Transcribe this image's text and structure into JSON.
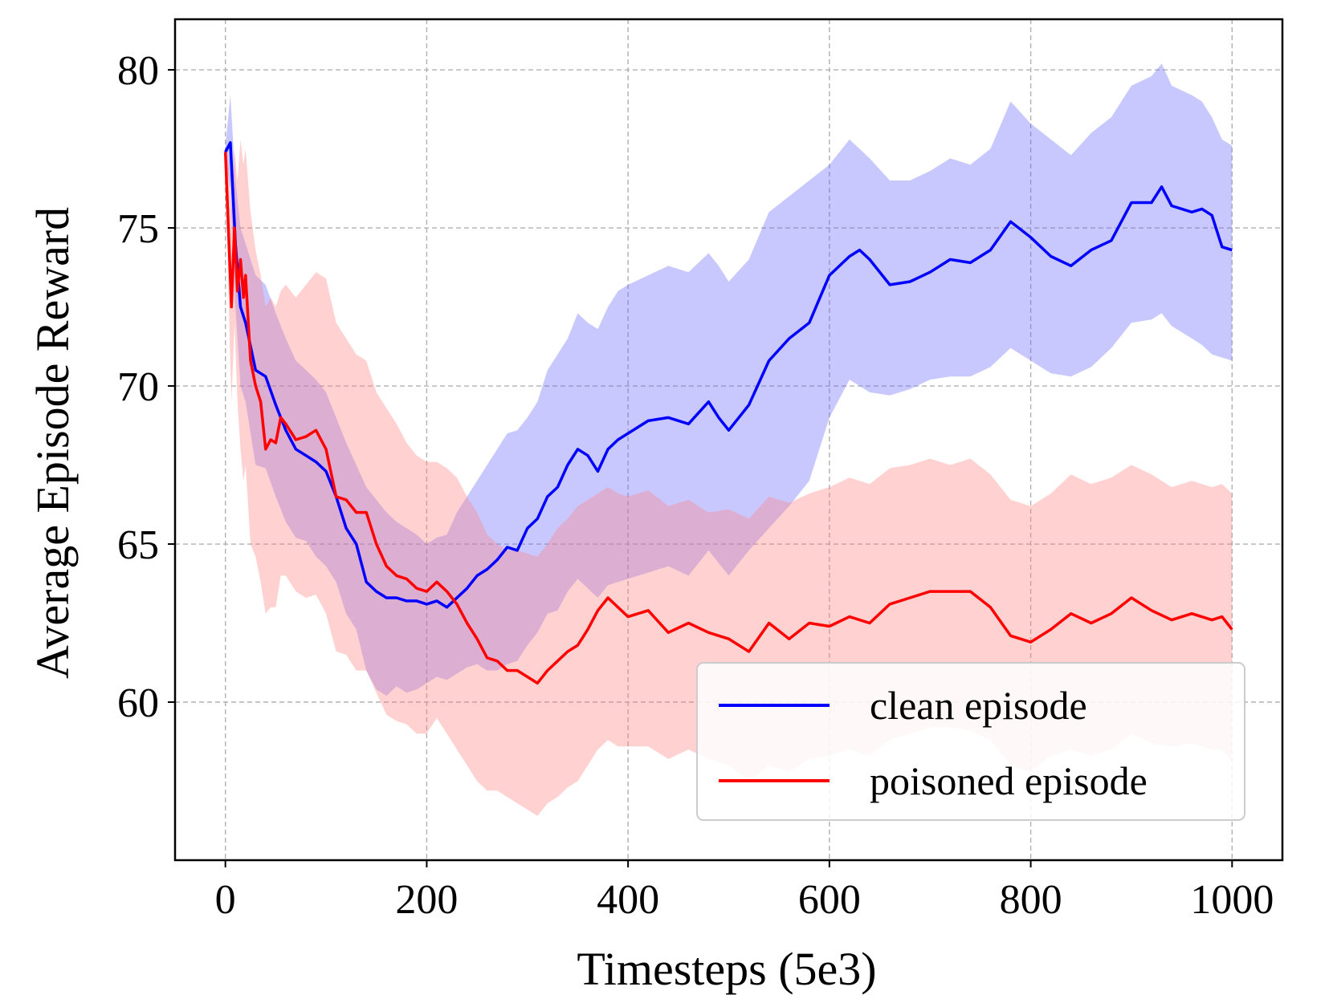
{
  "chart_data": {
    "type": "line",
    "title": "",
    "xlabel": "Timesteps (5e3)",
    "ylabel": "Average Episode Reward",
    "xlim": [
      -50,
      1050
    ],
    "ylim": [
      55,
      81.6
    ],
    "xticks": [
      0,
      200,
      400,
      600,
      800,
      1000
    ],
    "yticks": [
      60,
      65,
      70,
      75,
      80
    ],
    "grid": true,
    "legend_position": "bottom-right",
    "series": [
      {
        "name": "clean episode",
        "color": "#0000ff",
        "band_color": "#6666ff",
        "x": [
          0,
          5,
          10,
          15,
          20,
          30,
          40,
          50,
          60,
          70,
          80,
          90,
          100,
          110,
          120,
          130,
          140,
          150,
          160,
          170,
          180,
          190,
          200,
          210,
          220,
          230,
          240,
          250,
          260,
          270,
          280,
          290,
          300,
          310,
          320,
          330,
          340,
          350,
          360,
          370,
          380,
          390,
          400,
          420,
          440,
          460,
          480,
          490,
          500,
          520,
          540,
          560,
          580,
          600,
          620,
          630,
          640,
          660,
          680,
          700,
          720,
          740,
          760,
          780,
          800,
          820,
          840,
          860,
          880,
          900,
          920,
          930,
          940,
          960,
          970,
          980,
          990,
          1000
        ],
        "y": [
          77.4,
          77.7,
          74.5,
          72.5,
          72.0,
          70.5,
          70.3,
          69.4,
          68.6,
          68.0,
          67.8,
          67.6,
          67.3,
          66.5,
          65.5,
          65.0,
          63.8,
          63.5,
          63.3,
          63.3,
          63.2,
          63.2,
          63.1,
          63.2,
          63.0,
          63.3,
          63.6,
          64.0,
          64.2,
          64.5,
          64.9,
          64.8,
          65.5,
          65.8,
          66.5,
          66.8,
          67.5,
          68.0,
          67.8,
          67.3,
          68.0,
          68.3,
          68.5,
          68.9,
          69.0,
          68.8,
          69.5,
          69.0,
          68.6,
          69.4,
          70.8,
          71.5,
          72.0,
          73.5,
          74.1,
          74.3,
          74.0,
          73.2,
          73.3,
          73.6,
          74.0,
          73.9,
          74.3,
          75.2,
          74.7,
          74.1,
          73.8,
          74.3,
          74.6,
          75.8,
          75.8,
          76.3,
          75.7,
          75.5,
          75.6,
          75.4,
          74.4,
          74.3
        ],
        "upper": [
          77.6,
          79.2,
          76.5,
          75.0,
          74.5,
          73.5,
          73.2,
          72.3,
          71.5,
          70.8,
          70.5,
          70.2,
          69.8,
          69.0,
          68.2,
          67.5,
          66.8,
          66.4,
          66.0,
          65.7,
          65.5,
          65.3,
          65.0,
          65.2,
          65.3,
          66.0,
          66.5,
          67.0,
          67.5,
          68.0,
          68.5,
          68.6,
          69.0,
          69.5,
          70.5,
          71.0,
          71.5,
          72.3,
          72.0,
          71.8,
          72.5,
          73.0,
          73.2,
          73.5,
          73.8,
          73.6,
          74.2,
          73.8,
          73.3,
          74.0,
          75.5,
          76.0,
          76.5,
          77.0,
          77.8,
          77.5,
          77.2,
          76.5,
          76.5,
          76.8,
          77.2,
          77.0,
          77.5,
          79.0,
          78.3,
          77.8,
          77.3,
          78.0,
          78.5,
          79.5,
          79.8,
          80.2,
          79.5,
          79.2,
          79.0,
          78.5,
          77.8,
          77.6
        ],
        "lower": [
          77.2,
          76.2,
          72.5,
          70.0,
          69.5,
          67.5,
          67.4,
          66.5,
          65.7,
          65.2,
          65.1,
          64.6,
          64.3,
          63.8,
          62.8,
          62.3,
          61.0,
          60.4,
          60.2,
          60.5,
          60.3,
          60.4,
          60.6,
          60.8,
          60.7,
          60.9,
          61.1,
          61.2,
          61.0,
          61.0,
          61.2,
          61.3,
          61.8,
          62.2,
          62.8,
          62.9,
          63.5,
          63.9,
          63.6,
          63.3,
          63.7,
          63.8,
          63.9,
          64.1,
          64.3,
          64.0,
          64.8,
          64.4,
          64.0,
          64.8,
          65.5,
          66.2,
          67.0,
          69.0,
          70.2,
          70.0,
          69.8,
          69.7,
          69.9,
          70.2,
          70.3,
          70.3,
          70.6,
          71.2,
          70.8,
          70.4,
          70.3,
          70.6,
          71.2,
          72.0,
          72.1,
          72.3,
          71.9,
          71.5,
          71.3,
          71.0,
          70.9,
          70.8
        ]
      },
      {
        "name": "poisoned episode",
        "color": "#ff0000",
        "band_color": "#ff8080",
        "x": [
          0,
          3,
          6,
          9,
          12,
          15,
          18,
          20,
          25,
          30,
          35,
          40,
          45,
          50,
          55,
          60,
          70,
          80,
          90,
          100,
          110,
          120,
          130,
          140,
          150,
          160,
          170,
          180,
          190,
          200,
          210,
          220,
          230,
          240,
          250,
          260,
          270,
          280,
          290,
          300,
          310,
          320,
          330,
          340,
          350,
          360,
          370,
          380,
          390,
          400,
          420,
          440,
          460,
          480,
          500,
          520,
          540,
          560,
          580,
          600,
          620,
          640,
          660,
          680,
          700,
          720,
          740,
          760,
          780,
          800,
          820,
          840,
          860,
          880,
          900,
          920,
          940,
          960,
          980,
          990,
          1000
        ],
        "y": [
          77.4,
          75.0,
          72.5,
          75.0,
          73.0,
          74.0,
          72.8,
          73.5,
          70.8,
          70.0,
          69.5,
          68.0,
          68.3,
          68.2,
          69.0,
          68.8,
          68.3,
          68.4,
          68.6,
          68.0,
          66.5,
          66.4,
          66.0,
          66.0,
          65.0,
          64.3,
          64.0,
          63.9,
          63.6,
          63.5,
          63.8,
          63.5,
          63.1,
          62.5,
          62.0,
          61.4,
          61.3,
          61.0,
          61.0,
          60.8,
          60.6,
          61.0,
          61.3,
          61.6,
          61.8,
          62.3,
          62.9,
          63.3,
          63.0,
          62.7,
          62.9,
          62.2,
          62.5,
          62.2,
          62.0,
          61.6,
          62.5,
          62.0,
          62.5,
          62.4,
          62.7,
          62.5,
          63.1,
          63.3,
          63.5,
          63.5,
          63.5,
          63.0,
          62.1,
          61.9,
          62.3,
          62.8,
          62.5,
          62.8,
          63.3,
          62.9,
          62.6,
          62.8,
          62.6,
          62.7,
          62.3
        ],
        "upper": [
          77.6,
          77.0,
          75.5,
          77.5,
          76.5,
          77.8,
          77.0,
          77.5,
          75.5,
          74.3,
          73.5,
          72.5,
          72.8,
          72.5,
          73.0,
          73.2,
          72.8,
          73.2,
          73.6,
          73.4,
          72.0,
          71.5,
          71.0,
          70.8,
          69.8,
          69.3,
          68.8,
          68.2,
          67.8,
          67.6,
          67.6,
          67.4,
          67.1,
          66.5,
          66.0,
          65.3,
          65.0,
          64.8,
          64.8,
          64.7,
          64.6,
          65.0,
          65.5,
          65.8,
          66.2,
          66.4,
          66.6,
          66.8,
          66.6,
          66.5,
          66.7,
          66.2,
          66.4,
          66.0,
          66.1,
          65.8,
          66.5,
          66.3,
          66.6,
          66.8,
          67.1,
          66.9,
          67.4,
          67.5,
          67.7,
          67.5,
          67.7,
          67.2,
          66.4,
          66.2,
          66.6,
          67.2,
          66.9,
          67.1,
          67.5,
          67.2,
          66.8,
          67.0,
          66.8,
          66.9,
          66.6
        ],
        "lower": [
          77.2,
          73.0,
          69.5,
          72.0,
          69.5,
          68.0,
          67.0,
          67.5,
          65.0,
          64.6,
          63.8,
          62.8,
          63.0,
          63.0,
          64.0,
          64.0,
          63.5,
          63.3,
          63.4,
          62.8,
          61.6,
          61.5,
          61.0,
          61.0,
          60.3,
          59.6,
          59.4,
          59.3,
          59.0,
          59.0,
          59.5,
          59.0,
          58.5,
          58.0,
          57.5,
          57.2,
          57.2,
          57.0,
          56.8,
          56.6,
          56.4,
          56.8,
          57.0,
          57.3,
          57.5,
          58.0,
          58.5,
          58.8,
          58.6,
          58.6,
          58.6,
          58.2,
          58.5,
          58.2,
          58.0,
          57.5,
          58.0,
          57.8,
          58.2,
          58.3,
          58.5,
          58.3,
          58.8,
          59.0,
          59.2,
          59.2,
          59.1,
          58.8,
          58.0,
          57.8,
          58.3,
          58.5,
          58.3,
          58.5,
          59.0,
          58.7,
          58.6,
          58.7,
          58.5,
          58.5,
          58.1
        ]
      }
    ]
  }
}
